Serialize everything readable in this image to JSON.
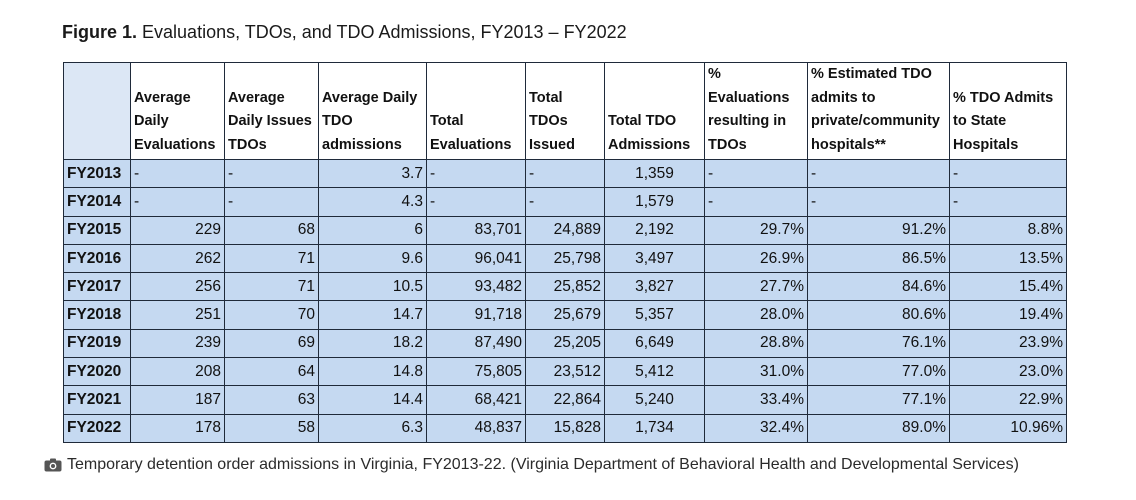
{
  "figure": {
    "label": "Figure 1.",
    "title": "Evaluations, TDOs, and TDO Admissions, FY2013 – FY2022"
  },
  "table": {
    "headers": [
      "Average Daily Evaluations",
      "Average Daily Issues TDOs",
      "Average Daily TDO admissions",
      "Total Evaluations",
      "Total TDOs Issued",
      "Total TDO Admissions",
      "% Evaluations resulting in TDOs",
      "% Estimated TDO admits to private/community hospitals**",
      "% TDO Admits to State Hospitals"
    ],
    "rows": [
      {
        "year": "FY2013",
        "cells": [
          "-",
          "-",
          "3.7",
          "-",
          "-",
          "1,359",
          "-",
          "-",
          "-"
        ]
      },
      {
        "year": "FY2014",
        "cells": [
          "-",
          "-",
          "4.3",
          "-",
          "-",
          "1,579",
          "-",
          "-",
          "-"
        ]
      },
      {
        "year": "FY2015",
        "cells": [
          "229",
          "68",
          "6",
          "83,701",
          "24,889",
          "2,192",
          "29.7%",
          "91.2%",
          "8.8%"
        ]
      },
      {
        "year": "FY2016",
        "cells": [
          "262",
          "71",
          "9.6",
          "96,041",
          "25,798",
          "3,497",
          "26.9%",
          "86.5%",
          "13.5%"
        ]
      },
      {
        "year": "FY2017",
        "cells": [
          "256",
          "71",
          "10.5",
          "93,482",
          "25,852",
          "3,827",
          "27.7%",
          "84.6%",
          "15.4%"
        ]
      },
      {
        "year": "FY2018",
        "cells": [
          "251",
          "70",
          "14.7",
          "91,718",
          "25,679",
          "5,357",
          "28.0%",
          "80.6%",
          "19.4%"
        ]
      },
      {
        "year": "FY2019",
        "cells": [
          "239",
          "69",
          "18.2",
          "87,490",
          "25,205",
          "6,649",
          "28.8%",
          "76.1%",
          "23.9%"
        ]
      },
      {
        "year": "FY2020",
        "cells": [
          "208",
          "64",
          "14.8",
          "75,805",
          "23,512",
          "5,412",
          "31.0%",
          "77.0%",
          "23.0%"
        ]
      },
      {
        "year": "FY2021",
        "cells": [
          "187",
          "63",
          "14.4",
          "68,421",
          "22,864",
          "5,240",
          "33.4%",
          "77.1%",
          "22.9%"
        ]
      },
      {
        "year": "FY2022",
        "cells": [
          "178",
          "58",
          "6.3",
          "48,837",
          "15,828",
          "1,734",
          "32.4%",
          "89.0%",
          "10.96%"
        ]
      }
    ]
  },
  "caption": {
    "icon": "camera-icon",
    "text": "Temporary detention order admissions in Virginia, FY2013-22. (Virginia Department of Behavioral Health and Developmental Services)"
  }
}
